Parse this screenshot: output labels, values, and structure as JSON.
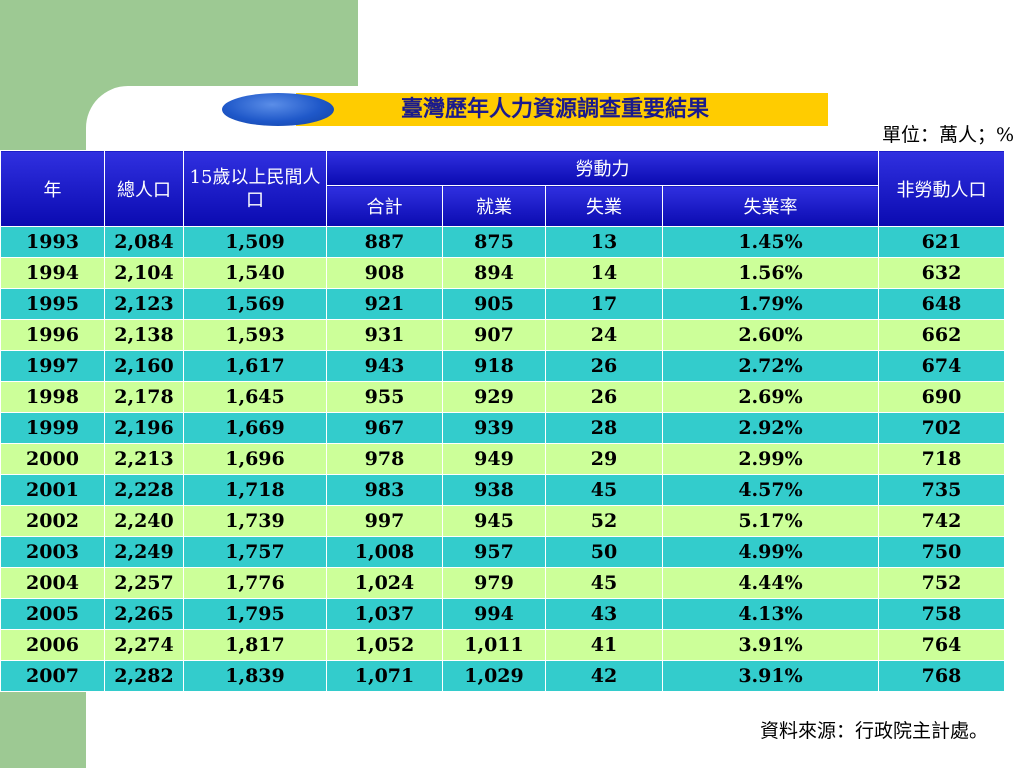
{
  "title": "臺灣歷年人力資源調查重要結果",
  "unit": "單位：萬人；%",
  "source": "資料來源：行政院主計處。",
  "colors": {
    "header_blue": "#0a0ab0",
    "row_teal": "#33cccc",
    "row_lime": "#ccff99",
    "title_bg": "#ffcc00",
    "title_text": "#1a1a8c",
    "side_green": "#9dc993"
  },
  "table": {
    "headers": {
      "year": "年",
      "total_pop": "總人口",
      "pop15": "15歲以上民間人口",
      "labor_force": "勞動力",
      "lf_total": "合計",
      "employed": "就業",
      "unemployed": "失業",
      "unemp_rate": "失業率",
      "non_labor": "非勞動人口"
    },
    "rows": [
      [
        "1993",
        "2,084",
        "1,509",
        "887",
        "875",
        "13",
        "1.45%",
        "621"
      ],
      [
        "1994",
        "2,104",
        "1,540",
        "908",
        "894",
        "14",
        "1.56%",
        "632"
      ],
      [
        "1995",
        "2,123",
        "1,569",
        "921",
        "905",
        "17",
        "1.79%",
        "648"
      ],
      [
        "1996",
        "2,138",
        "1,593",
        "931",
        "907",
        "24",
        "2.60%",
        "662"
      ],
      [
        "1997",
        "2,160",
        "1,617",
        "943",
        "918",
        "26",
        "2.72%",
        "674"
      ],
      [
        "1998",
        "2,178",
        "1,645",
        "955",
        "929",
        "26",
        "2.69%",
        "690"
      ],
      [
        "1999",
        "2,196",
        "1,669",
        "967",
        "939",
        "28",
        "2.92%",
        "702"
      ],
      [
        "2000",
        "2,213",
        "1,696",
        "978",
        "949",
        "29",
        "2.99%",
        "718"
      ],
      [
        "2001",
        "2,228",
        "1,718",
        "983",
        "938",
        "45",
        "4.57%",
        "735"
      ],
      [
        "2002",
        "2,240",
        "1,739",
        "997",
        "945",
        "52",
        "5.17%",
        "742"
      ],
      [
        "2003",
        "2,249",
        "1,757",
        "1,008",
        "957",
        "50",
        "4.99%",
        "750"
      ],
      [
        "2004",
        "2,257",
        "1,776",
        "1,024",
        "979",
        "45",
        "4.44%",
        "752"
      ],
      [
        "2005",
        "2,265",
        "1,795",
        "1,037",
        "994",
        "43",
        "4.13%",
        "758"
      ],
      [
        "2006",
        "2,274",
        "1,817",
        "1,052",
        "1,011",
        "41",
        "3.91%",
        "764"
      ],
      [
        "2007",
        "2,282",
        "1,839",
        "1,071",
        "1,029",
        "42",
        "3.91%",
        "768"
      ]
    ]
  }
}
